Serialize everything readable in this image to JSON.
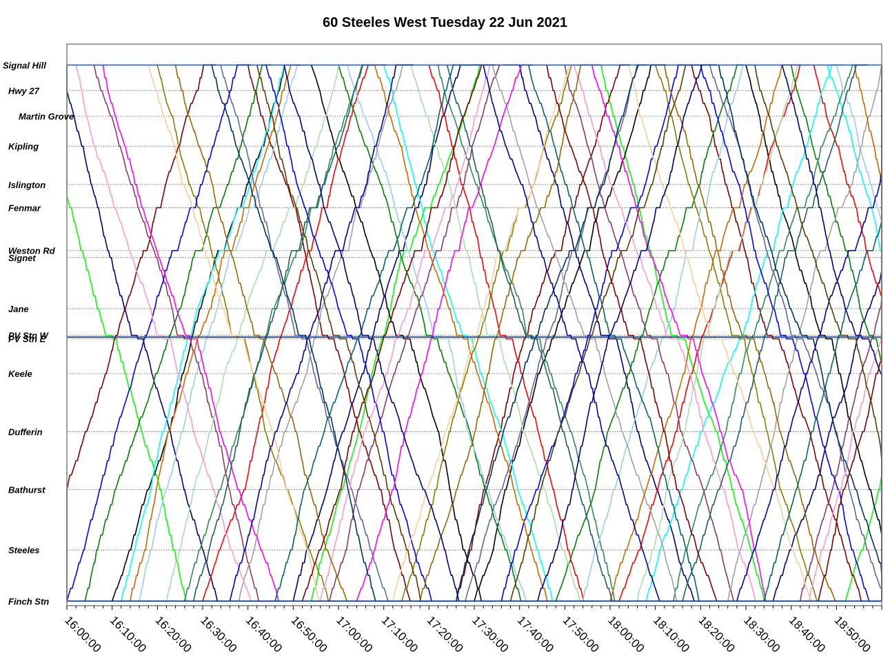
{
  "chart_data": {
    "type": "line",
    "title": "60 Steeles West Tuesday 22 Jun 2021",
    "x_tick_labels": [
      "16:00:00",
      "16:10:00",
      "16:20:00",
      "16:30:00",
      "16:40:00",
      "16:50:00",
      "17:00:00",
      "17:10:00",
      "17:20:00",
      "17:30:00",
      "17:40:00",
      "17:50:00",
      "18:00:00",
      "18:10:00",
      "18:20:00",
      "18:30:00",
      "18:40:00",
      "18:50:00"
    ],
    "x_range_minutes": [
      0,
      180
    ],
    "y_stops": [
      {
        "name": "Signal Hill",
        "pos": 0
      },
      {
        "name": "Hwy 27",
        "pos": 2.2
      },
      {
        "name": "Martin Grove",
        "pos": 4.4
      },
      {
        "name": "Kipling",
        "pos": 7.0
      },
      {
        "name": "Islington",
        "pos": 10.3
      },
      {
        "name": "Fenmar",
        "pos": 12.3
      },
      {
        "name": "Weston Rd",
        "pos": 16.0
      },
      {
        "name": "Signet",
        "pos": 16.6
      },
      {
        "name": "Jane",
        "pos": 21.0
      },
      {
        "name": "PV Stn W",
        "pos": 23.3
      },
      {
        "name": "PV Stn E",
        "pos": 23.6
      },
      {
        "name": "Keele",
        "pos": 26.6
      },
      {
        "name": "Dufferin",
        "pos": 31.6
      },
      {
        "name": "Bathurst",
        "pos": 36.6
      },
      {
        "name": "Steeles",
        "pos": 41.8
      },
      {
        "name": "Finch Stn",
        "pos": 46.2
      }
    ],
    "y_range": [
      -1.8,
      46.6
    ],
    "grid": true,
    "grid_style": "dotted horizontal at stops, vertical ticks every 2 minutes",
    "series_colors": [
      "#000000",
      "#00007f",
      "#7f0000",
      "#0000ff",
      "#ff0000",
      "#008000",
      "#00ffff",
      "#ff00ff",
      "#7f7f00",
      "#2e8b57",
      "#7f7f7f",
      "#a0a0a0",
      "#99ccee",
      "#ff99cc",
      "#ffcc99",
      "#aaddaa",
      "#8b3a62",
      "#666699",
      "#cc6600",
      "#00ff00",
      "#996600",
      "#1f5f5f",
      "#003366",
      "#0000aa",
      "#5a3b00",
      "#006666"
    ],
    "series": [
      {
        "color": "#00ff00",
        "trips": [
          [
            -8,
            "WE"
          ],
          [
            54,
            "EW"
          ],
          [
            118,
            "WE"
          ],
          [
            172,
            "EW"
          ]
        ]
      },
      {
        "color": "#7f0000",
        "trips": [
          [
            -6,
            "EW"
          ],
          [
            40,
            "WE"
          ],
          [
            86,
            "EW"
          ],
          [
            138,
            "WE"
          ]
        ]
      },
      {
        "color": "#000000",
        "trips": [
          [
            10,
            "EW"
          ],
          [
            54,
            "WE"
          ],
          [
            90,
            "EW"
          ],
          [
            150,
            "WE"
          ]
        ]
      },
      {
        "color": "#00007f",
        "trips": [
          [
            -2,
            "WE"
          ],
          [
            50,
            "EW"
          ],
          [
            100,
            "WE"
          ],
          [
            156,
            "EW"
          ]
        ]
      },
      {
        "color": "#ff0000",
        "trips": [
          [
            30,
            "EW"
          ],
          [
            80,
            "WE"
          ],
          [
            122,
            "EW"
          ],
          [
            165,
            "WE"
          ]
        ]
      },
      {
        "color": "#008000",
        "trips": [
          [
            4,
            "EW"
          ],
          [
            60,
            "WE"
          ],
          [
            108,
            "EW"
          ],
          [
            160,
            "WE"
          ]
        ]
      },
      {
        "color": "#00ffff",
        "trips": [
          [
            12,
            "EW"
          ],
          [
            70,
            "WE"
          ],
          [
            128,
            "EW"
          ],
          [
            168,
            "WE"
          ]
        ]
      },
      {
        "color": "#7f7f00",
        "trips": [
          [
            20,
            "WE"
          ],
          [
            74,
            "EW"
          ],
          [
            130,
            "WE"
          ]
        ]
      },
      {
        "color": "#2e8b57",
        "trips": [
          [
            26,
            "EW"
          ],
          [
            82,
            "WE"
          ],
          [
            134,
            "EW"
          ]
        ]
      },
      {
        "color": "#99ccee",
        "trips": [
          [
            16,
            "EW"
          ],
          [
            62,
            "WE"
          ],
          [
            114,
            "EW"
          ],
          [
            170,
            "WE"
          ]
        ]
      },
      {
        "color": "#8b3a62",
        "trips": [
          [
            6,
            "WE"
          ],
          [
            58,
            "EW"
          ],
          [
            110,
            "WE"
          ],
          [
            162,
            "EW"
          ]
        ]
      },
      {
        "color": "#666699",
        "trips": [
          [
            34,
            "WE"
          ],
          [
            88,
            "EW"
          ],
          [
            142,
            "WE"
          ]
        ]
      },
      {
        "color": "#aaddaa",
        "trips": [
          [
            22,
            "EW"
          ],
          [
            76,
            "WE"
          ],
          [
            126,
            "EW"
          ]
        ]
      },
      {
        "color": "#a0a0a0",
        "trips": [
          [
            38,
            "EW"
          ],
          [
            94,
            "WE"
          ],
          [
            146,
            "EW"
          ]
        ]
      },
      {
        "color": "#0000ff",
        "trips": [
          [
            0,
            "EW"
          ],
          [
            44,
            "WE"
          ],
          [
            96,
            "EW"
          ],
          [
            140,
            "WE"
          ]
        ]
      },
      {
        "color": "#ff00ff",
        "trips": [
          [
            8,
            "WE"
          ],
          [
            64,
            "EW"
          ],
          [
            116,
            "WE"
          ]
        ]
      },
      {
        "color": "#cc6600",
        "trips": [
          [
            14,
            "EW"
          ],
          [
            68,
            "WE"
          ],
          [
            120,
            "EW"
          ],
          [
            174,
            "WE"
          ]
        ]
      },
      {
        "color": "#ff99cc",
        "trips": [
          [
            2,
            "WE"
          ],
          [
            56,
            "EW"
          ],
          [
            112,
            "WE"
          ],
          [
            164,
            "EW"
          ]
        ]
      },
      {
        "color": "#ffcc99",
        "trips": [
          [
            18,
            "WE"
          ],
          [
            72,
            "EW"
          ],
          [
            124,
            "WE"
          ]
        ]
      },
      {
        "color": "#996600",
        "trips": [
          [
            24,
            "WE"
          ],
          [
            78,
            "EW"
          ],
          [
            132,
            "WE"
          ]
        ]
      },
      {
        "color": "#1f5f5f",
        "trips": [
          [
            28,
            "EW"
          ],
          [
            84,
            "WE"
          ],
          [
            136,
            "EW"
          ]
        ]
      },
      {
        "color": "#003366",
        "trips": [
          [
            32,
            "WE"
          ],
          [
            86,
            "EW"
          ],
          [
            144,
            "WE"
          ]
        ]
      },
      {
        "color": "#0000aa",
        "trips": [
          [
            36,
            "EW"
          ],
          [
            92,
            "WE"
          ],
          [
            148,
            "EW"
          ]
        ]
      },
      {
        "color": "#5a3b00",
        "trips": [
          [
            42,
            "WE"
          ],
          [
            98,
            "EW"
          ],
          [
            152,
            "WE"
          ]
        ]
      },
      {
        "color": "#006666",
        "trips": [
          [
            46,
            "EW"
          ],
          [
            102,
            "WE"
          ],
          [
            154,
            "EW"
          ]
        ]
      },
      {
        "color": "#00007f",
        "trips": [
          [
            48,
            "WE"
          ],
          [
            104,
            "EW"
          ],
          [
            158,
            "WE"
          ]
        ]
      },
      {
        "color": "#7f0000",
        "trips": [
          [
            52,
            "EW"
          ],
          [
            106,
            "WE"
          ],
          [
            166,
            "EW"
          ]
        ]
      }
    ]
  }
}
